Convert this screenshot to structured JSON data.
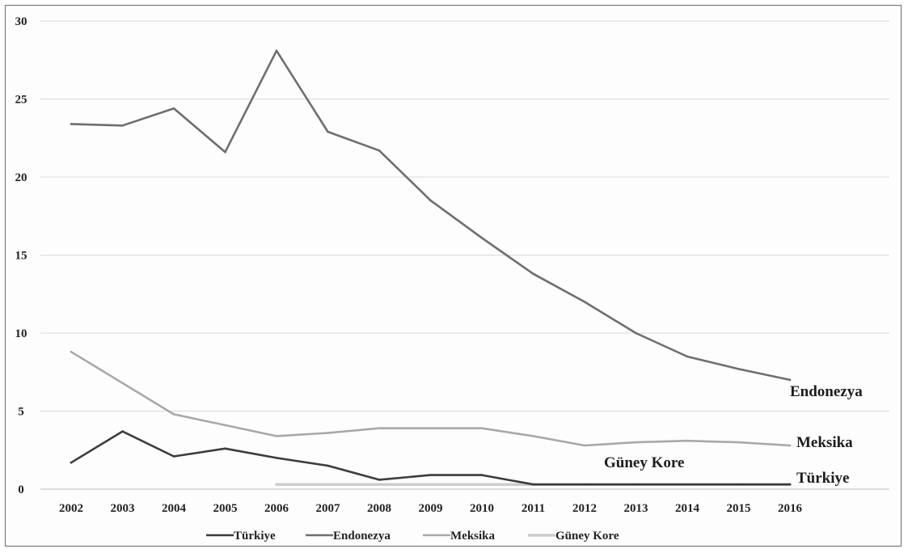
{
  "chart_data": {
    "type": "line",
    "title": "",
    "xlabel": "",
    "ylabel": "",
    "ylim": [
      0,
      30
    ],
    "yticks": [
      0,
      5,
      10,
      15,
      20,
      25,
      30
    ],
    "grid": "horizontal",
    "legend_position": "bottom",
    "categories": [
      "2002",
      "2003",
      "2004",
      "2005",
      "2006",
      "2007",
      "2008",
      "2009",
      "2010",
      "2011",
      "2012",
      "2013",
      "2014",
      "2015",
      "2016"
    ],
    "series": [
      {
        "name": "Türkiye",
        "color": "#3c3c3c",
        "values": [
          1.7,
          3.7,
          2.1,
          2.6,
          2.0,
          1.5,
          0.6,
          0.9,
          0.9,
          0.3,
          0.3,
          0.3,
          0.3,
          0.3,
          0.3
        ]
      },
      {
        "name": "Endonezya",
        "color": "#6e6e6e",
        "values": [
          23.4,
          23.3,
          24.4,
          21.6,
          28.1,
          22.9,
          21.7,
          18.5,
          16.1,
          13.8,
          12.0,
          10.0,
          8.5,
          7.7,
          7.0
        ]
      },
      {
        "name": "Meksika",
        "color": "#a8a8a8",
        "values": [
          8.8,
          6.8,
          4.8,
          4.1,
          3.4,
          3.6,
          3.9,
          3.9,
          3.9,
          3.4,
          2.8,
          3.0,
          3.1,
          3.0,
          2.8
        ]
      },
      {
        "name": "Güney Kore",
        "color": "#cdcdcd",
        "values": [
          null,
          null,
          null,
          null,
          0.3,
          0.3,
          0.3,
          0.3,
          0.3,
          0.3,
          0.3,
          0.3,
          0.3,
          0.3,
          0.3
        ]
      }
    ],
    "annotations": [
      {
        "text": "Endonezya"
      },
      {
        "text": "Meksika"
      },
      {
        "text": "Güney Kore"
      },
      {
        "text": "Türkiye"
      }
    ]
  }
}
